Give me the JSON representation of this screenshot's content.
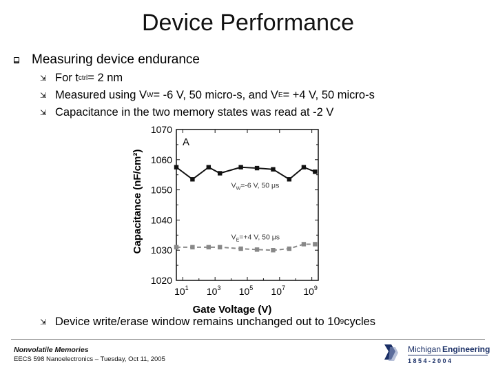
{
  "slide": {
    "title": "Device Performance",
    "heading": "Measuring device endurance",
    "bullets": {
      "b1": {
        "pre": "For t",
        "sub": "ctrl",
        "post": " = 2 nm"
      },
      "b2": {
        "a": "Measured using V",
        "sub1": "W",
        "b": " = -6 V, 50 micro-s, and V",
        "sub2": "E",
        "c": " = +4 V, 50 micro-s"
      },
      "b3": {
        "text": "Capacitance in the two memory states was read at -2 V"
      },
      "b4": {
        "pre": "Device write/erase window remains unchanged out to 10",
        "sup": "9",
        "post": " cycles"
      }
    }
  },
  "chart_data": {
    "type": "line",
    "panel_label": "A",
    "xlabel": "Gate Voltage (V)",
    "ylabel": "Capacitance (nF/cm²)",
    "ylim": [
      1020,
      1070
    ],
    "yticks": [
      "1020",
      "1030",
      "1040",
      "1050",
      "1060",
      "1070"
    ],
    "x_scale": "log",
    "x_tick_base": "10",
    "x_tick_exps": [
      "1",
      "3",
      "5",
      "7",
      "9"
    ],
    "xlim_exp": [
      0.6,
      9.4
    ],
    "series": [
      {
        "annotation": {
          "main": "V",
          "sub": "W",
          "rest": "=-6 V, 50 μs"
        },
        "style": "solid",
        "marker": "square",
        "color": "#111111",
        "x_exp": [
          0.6,
          1.6,
          2.6,
          3.3,
          4.6,
          5.6,
          6.6,
          7.6,
          8.5,
          9.2
        ],
        "y": [
          1057.5,
          1053.5,
          1057.5,
          1055.5,
          1057.5,
          1057.2,
          1056.8,
          1053.5,
          1057.5,
          1056.0
        ]
      },
      {
        "annotation": {
          "main": "V",
          "sub": "E",
          "rest": "=+4 V, 50 μs"
        },
        "style": "dashed",
        "marker": "square",
        "color": "#888888",
        "x_exp": [
          0.6,
          1.6,
          2.6,
          3.3,
          4.6,
          5.6,
          6.6,
          7.6,
          8.5,
          9.2
        ],
        "y": [
          1031.0,
          1031.0,
          1031.0,
          1031.0,
          1030.5,
          1030.2,
          1030.0,
          1030.5,
          1032.0,
          1032.0
        ]
      }
    ]
  },
  "footer": {
    "course_title": "Nonvolatile Memories",
    "course_info": "EECS 598 Nanoelectronics – Tuesday, Oct 11, 2005",
    "logo_a": "Michigan",
    "logo_b": "Engineering",
    "logo_years": "1 8 5 4 - 2 0 0 4"
  }
}
